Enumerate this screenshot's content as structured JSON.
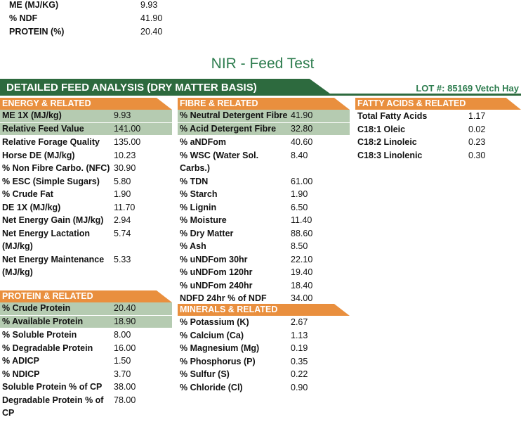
{
  "summary": [
    {
      "label": "ME (MJ/KG)",
      "value": "9.93"
    },
    {
      "label": "% NDF",
      "value": "41.90"
    },
    {
      "label": "PROTEIN (%)",
      "value": "20.40"
    }
  ],
  "title": "NIR - Feed Test",
  "banner": "DETAILED FEED ANALYSIS (DRY MATTER BASIS)",
  "lot": "LOT #: 85169 Vetch Hay",
  "sections": [
    {
      "title": "ENERGY & RELATED",
      "rows": [
        [
          "ME 1X (MJ/kg)",
          "9.93"
        ],
        [
          "Relative Feed Value",
          "141.00"
        ],
        [
          "Relative Forage Quality",
          "135.00"
        ],
        [
          "Horse DE (MJ/kg)",
          "10.23"
        ],
        [
          "% Non Fibre Carbo. (NFC)",
          "30.90"
        ],
        [
          "% ESC (Simple Sugars)",
          "5.80"
        ],
        [
          "% Crude Fat",
          "1.90"
        ],
        [
          "DE 1X (MJ/kg)",
          "11.70"
        ],
        [
          "Net Energy Gain (MJ/kg)",
          "2.94"
        ],
        [
          "Net Energy Lactation (MJ/kg)",
          "5.74"
        ],
        [
          "Net Energy Maintenance (MJ/kg)",
          "5.33"
        ]
      ]
    },
    {
      "title": "PROTEIN & RELATED",
      "rows": [
        [
          "% Crude Protein",
          "20.40"
        ],
        [
          "% Available Protein",
          "18.90"
        ],
        [
          "% Soluble Protein",
          "8.00"
        ],
        [
          "% Degradable Protein",
          "16.00"
        ],
        [
          "% ADICP",
          "1.50"
        ],
        [
          "% NDICP",
          "3.70"
        ],
        [
          "Soluble Protein % of CP",
          "38.00"
        ],
        [
          "Degradable Protein % of CP",
          "78.00"
        ]
      ]
    },
    {
      "title": "FIBRE & RELATED",
      "rows": [
        [
          "% Neutral Detergent Fibre",
          "41.90"
        ],
        [
          "% Acid Detergent Fibre",
          "32.80"
        ],
        [
          "% aNDFom",
          "40.60"
        ],
        [
          "% WSC (Water Sol. Carbs.)",
          "8.40"
        ],
        [
          "% TDN",
          "61.00"
        ],
        [
          "% Starch",
          "1.90"
        ],
        [
          "% Lignin",
          "6.50"
        ],
        [
          "% Moisture",
          "11.40"
        ],
        [
          "% Dry Matter",
          "88.60"
        ],
        [
          "% Ash",
          "8.50"
        ],
        [
          "% uNDFom 30hr",
          "22.10"
        ],
        [
          "% uNDFom 120hr",
          "19.40"
        ],
        [
          "% uNDFom 240hr",
          "18.40"
        ],
        [
          "NDFD 24hr % of NDF",
          "34.00"
        ]
      ]
    },
    {
      "title": "MINERALS & RELATED",
      "rows": [
        [
          "% Potassium (K)",
          "2.67"
        ],
        [
          "% Calcium (Ca)",
          "1.13"
        ],
        [
          "% Magnesium (Mg)",
          "0.19"
        ],
        [
          "% Phosphorus (P)",
          "0.35"
        ],
        [
          "% Sulfur (S)",
          "0.22"
        ],
        [
          "% Chloride (Cl)",
          "0.90"
        ]
      ]
    },
    {
      "title": "FATTY ACIDS & RELATED",
      "rows": [
        [
          "Total Fatty Acids",
          "1.17"
        ],
        [
          "C18:1 Oleic",
          "0.02"
        ],
        [
          "C18:2 Linoleic",
          "0.23"
        ],
        [
          "C18:3 Linolenic",
          "0.30"
        ]
      ]
    }
  ]
}
